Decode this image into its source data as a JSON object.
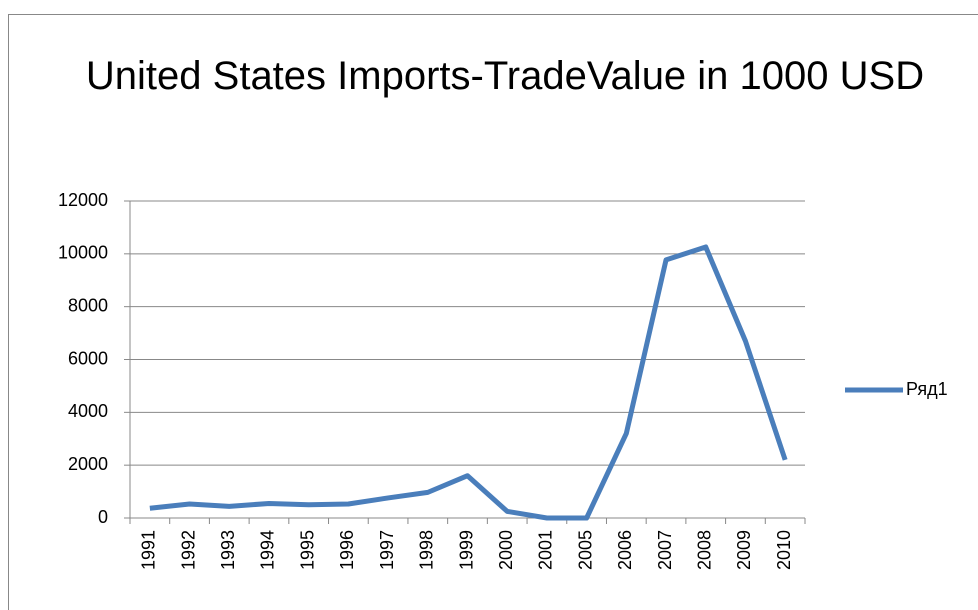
{
  "chart_data": {
    "type": "line",
    "title": "United States Imports-TradeValue in 1000 USD",
    "categories": [
      "1991",
      "1992",
      "1993",
      "1994",
      "1995",
      "1996",
      "1997",
      "1998",
      "1999",
      "2000",
      "2001",
      "2005",
      "2006",
      "2007",
      "2008",
      "2009",
      "2010"
    ],
    "series": [
      {
        "name": "Ряд1",
        "color": "#4a7ebb",
        "values": [
          370,
          530,
          440,
          550,
          500,
          530,
          760,
          970,
          1600,
          250,
          0,
          0,
          3200,
          9770,
          10260,
          6700,
          2200
        ]
      }
    ],
    "ylim": [
      0,
      12000
    ],
    "yticks": [
      0,
      2000,
      4000,
      6000,
      8000,
      10000,
      12000
    ],
    "grid": true,
    "legend": "right"
  }
}
